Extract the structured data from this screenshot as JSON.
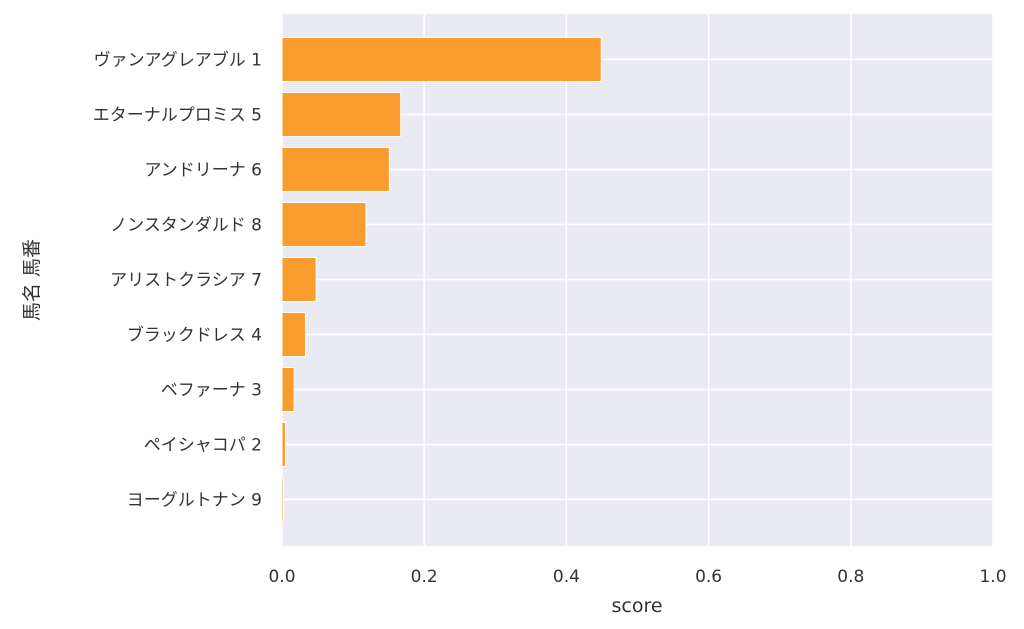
{
  "chart_data": {
    "type": "bar",
    "orientation": "horizontal",
    "xlabel": "score",
    "ylabel": "馬名 馬番",
    "categories": [
      "ヴァンアグレアブル 1",
      "エターナルプロミス 5",
      "アンドリーナ 6",
      "ノンスタンダルド 8",
      "アリストクラシア 7",
      "ブラックドレス 4",
      "ベファーナ 3",
      "ペイシャコパ 2",
      "ヨーグルトナン 9"
    ],
    "values": [
      0.449,
      0.167,
      0.151,
      0.118,
      0.048,
      0.033,
      0.017,
      0.005,
      0.002
    ],
    "xlim": [
      0,
      1.0
    ],
    "xticks": [
      "0.0",
      "0.2",
      "0.4",
      "0.6",
      "0.8",
      "1.0"
    ],
    "grid": true,
    "colors": {
      "bar": "#f99b2d",
      "bar_edge": "#ffffff",
      "plot_background": "#eaeaf2",
      "grid": "#ffffff"
    }
  }
}
